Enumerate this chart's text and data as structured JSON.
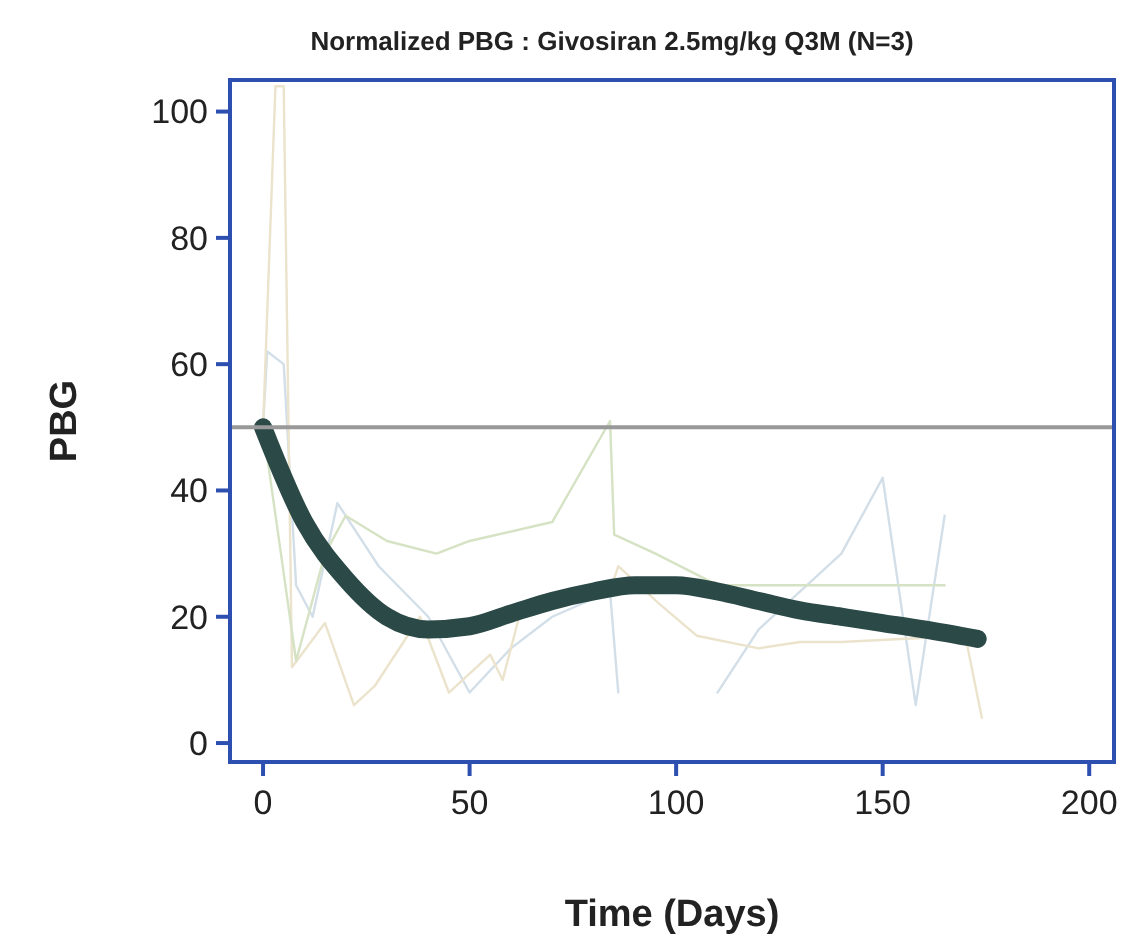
{
  "chart_data": {
    "type": "line",
    "title": "Normalized PBG : Givosiran 2.5mg/kg Q3M (N=3)",
    "xlabel": "Time (Days)",
    "ylabel": "PBG",
    "xlim": [
      -8,
      206
    ],
    "xticks": [
      0,
      50,
      100,
      150,
      200
    ],
    "ylim": [
      -3,
      105
    ],
    "yticks": [
      0,
      20,
      40,
      60,
      80,
      100
    ],
    "grid": false,
    "line_style": "solid",
    "marker": "none",
    "ref_lines": [
      {
        "axis": "y",
        "value": 50,
        "color": "#999999"
      }
    ],
    "series": [
      {
        "color": "#d3dfe8",
        "x": [
          0,
          1,
          5,
          8,
          12,
          18,
          28,
          40,
          50,
          60,
          70,
          84,
          86,
          100,
          110,
          120,
          140,
          150,
          158,
          165
        ],
        "values": [
          50,
          62,
          60,
          25,
          20,
          38,
          28,
          20,
          8,
          15,
          20,
          24,
          8,
          null,
          8,
          18,
          30,
          42,
          6,
          36
        ]
      },
      {
        "color": "#ebe3cc",
        "x": [
          0,
          3,
          5,
          7,
          15,
          22,
          27,
          38,
          45,
          55,
          58,
          62,
          84,
          86,
          96,
          105,
          120,
          130,
          140,
          170,
          174
        ],
        "values": [
          50,
          104,
          104,
          12,
          19,
          6,
          9,
          20,
          8,
          14,
          10,
          20,
          24,
          28,
          22,
          17,
          15,
          16,
          16,
          17,
          4
        ]
      },
      {
        "color": "#d6e2c4",
        "x": [
          0,
          8,
          15,
          20,
          30,
          42,
          50,
          70,
          84,
          85,
          95,
          110,
          140,
          165
        ],
        "values": [
          50,
          13,
          30,
          36,
          32,
          30,
          32,
          35,
          51,
          33,
          30,
          25,
          25,
          25
        ]
      },
      {
        "color": "#2b4a47",
        "x": [
          0,
          10,
          20,
          30,
          40,
          50,
          60,
          70,
          80,
          90,
          100,
          110,
          120,
          130,
          140,
          150,
          160,
          173
        ],
        "values": [
          50,
          35,
          26,
          20,
          18,
          18.5,
          20.5,
          22.5,
          24,
          25,
          25,
          24,
          22.5,
          21,
          20,
          19,
          18,
          16.5
        ]
      }
    ]
  }
}
